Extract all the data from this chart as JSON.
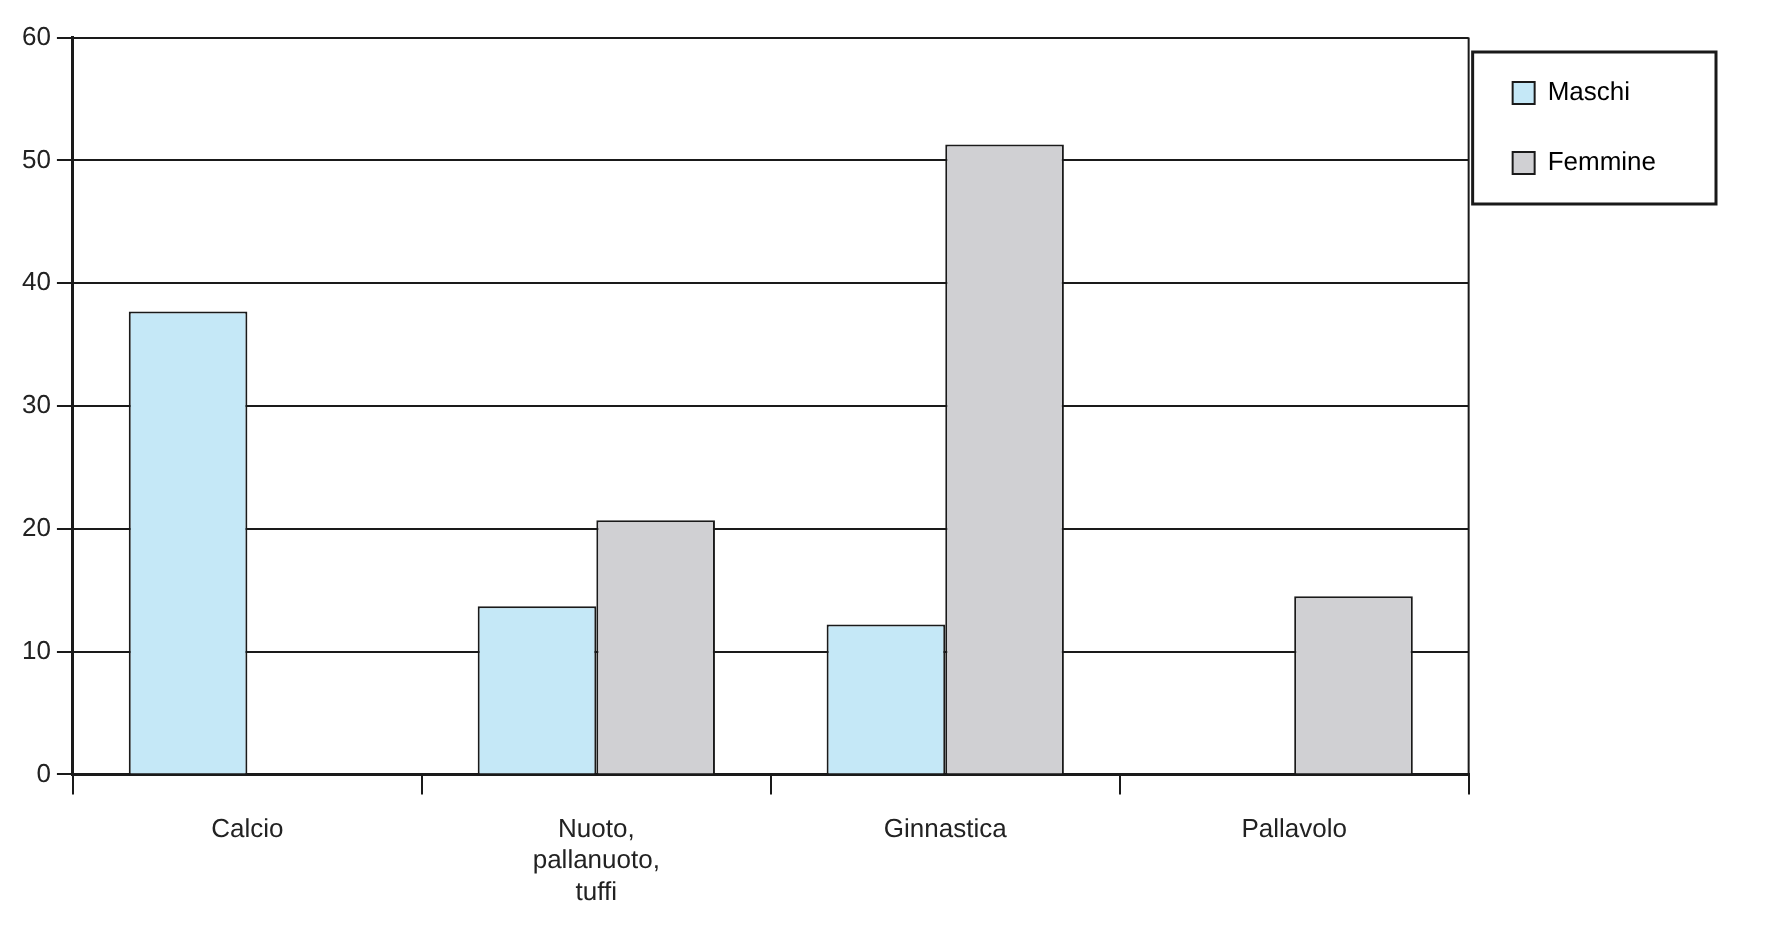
{
  "chart_data": {
    "type": "bar",
    "categories": [
      "Calcio",
      "Nuoto, pallanuoto, tuffi",
      "Ginnastica",
      "Pallavolo"
    ],
    "series": [
      {
        "name": "Maschi",
        "color": "#c5e8f7",
        "values": [
          37.7,
          13.7,
          12.2,
          null
        ]
      },
      {
        "name": "Femmine",
        "color": "#d0d0d3",
        "values": [
          null,
          20.7,
          51.3,
          14.5
        ]
      }
    ],
    "ylim": [
      0,
      60
    ],
    "yticks": [
      0,
      10,
      20,
      30,
      40,
      50,
      60
    ],
    "grid": "y",
    "legend": "right"
  }
}
